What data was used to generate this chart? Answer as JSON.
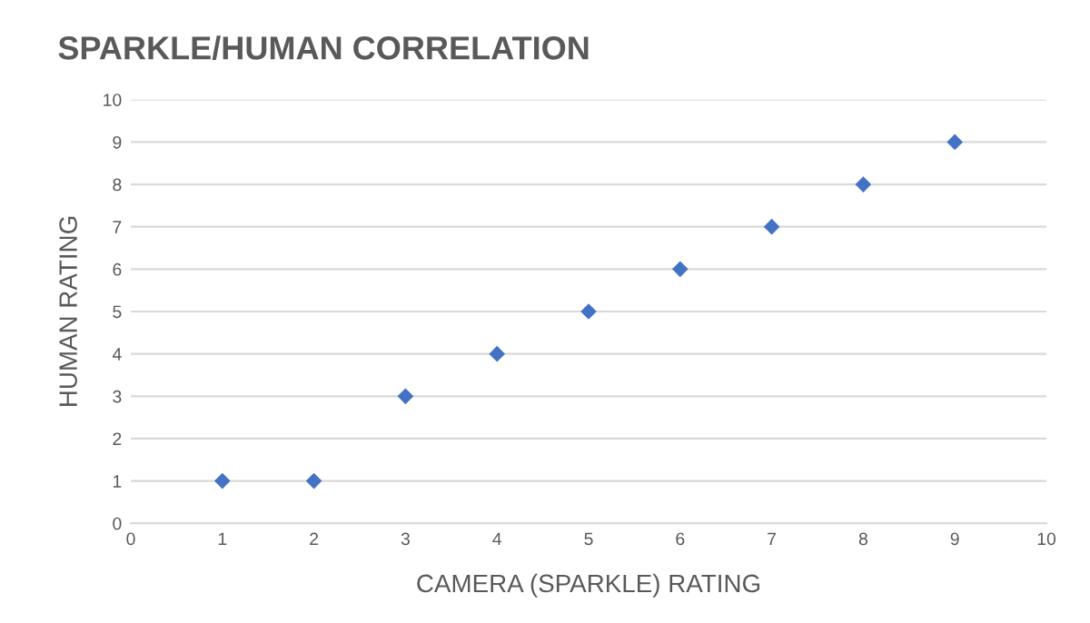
{
  "chart_data": {
    "type": "scatter",
    "title": "SPARKLE/HUMAN CORRELATION",
    "xlabel": "CAMERA (SPARKLE) RATING",
    "ylabel": "HUMAN RATING",
    "x": [
      1,
      2,
      3,
      4,
      5,
      6,
      7,
      8,
      9
    ],
    "series": [
      {
        "color": "#4472c4",
        "values": [
          1,
          1,
          3,
          4,
          5,
          6,
          7,
          8,
          9
        ]
      }
    ],
    "xlim": [
      0,
      10
    ],
    "ylim": [
      0,
      10
    ],
    "xticks": [
      0,
      1,
      2,
      3,
      4,
      5,
      6,
      7,
      8,
      9,
      10
    ],
    "yticks": [
      0,
      1,
      2,
      3,
      4,
      5,
      6,
      7,
      8,
      9,
      10
    ],
    "grid": "y",
    "marker": "diamond",
    "legend": false
  }
}
